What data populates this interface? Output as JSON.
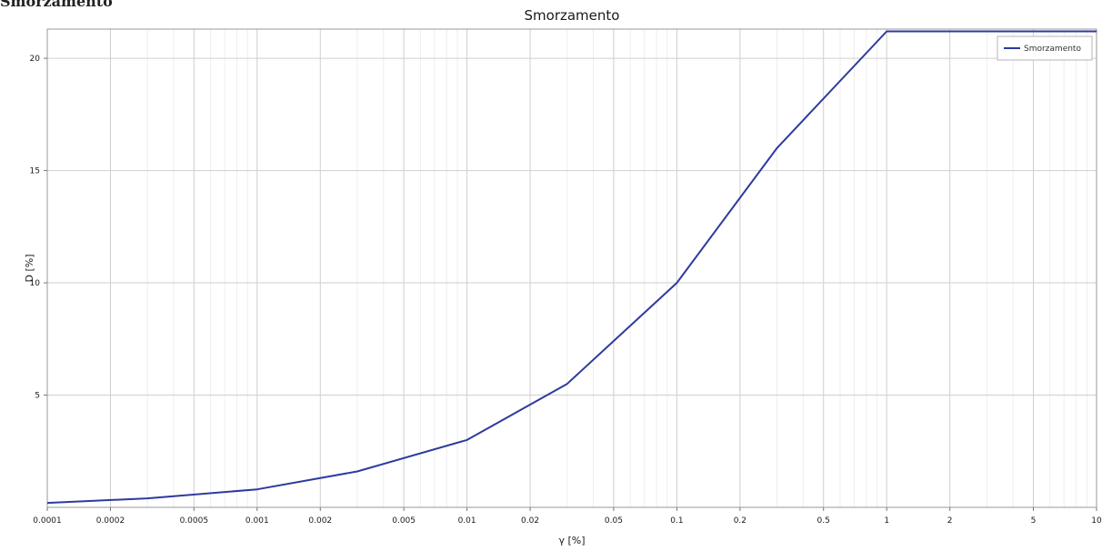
{
  "header_fragment": "Smorzamento",
  "chart_data": {
    "type": "line",
    "title": "Smorzamento",
    "xlabel": "γ [%]",
    "ylabel": "D [%]",
    "xscale": "log",
    "xlim": [
      0.0001,
      10
    ],
    "ylim": [
      0,
      21.3
    ],
    "x_ticks": [
      0.0001,
      0.0002,
      0.0005,
      0.001,
      0.002,
      0.005,
      0.01,
      0.02,
      0.05,
      0.1,
      0.2,
      0.5,
      1,
      2,
      5,
      10
    ],
    "x_tick_labels": [
      "0.0001",
      "0.0002",
      "0.0005",
      "0.001",
      "0.002",
      "0.005",
      "0.01",
      "0.02",
      "0.05",
      "0.1",
      "0.2",
      "0.5",
      "1",
      "2",
      "5",
      "10"
    ],
    "y_ticks": [
      5,
      10,
      15,
      20
    ],
    "y_tick_labels": [
      "5",
      "10",
      "15",
      "20"
    ],
    "grid": true,
    "legend_position": "top-right",
    "series": [
      {
        "name": "Smorzamento",
        "color": "#2e3a9e",
        "x": [
          0.0001,
          0.0003,
          0.001,
          0.003,
          0.01,
          0.03,
          0.1,
          0.3,
          1,
          10
        ],
        "y": [
          0.2,
          0.4,
          0.8,
          1.6,
          3.0,
          5.5,
          10.0,
          16.0,
          21.2,
          21.2
        ]
      }
    ]
  }
}
